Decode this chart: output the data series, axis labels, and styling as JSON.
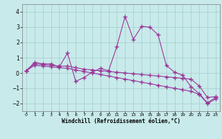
{
  "x": [
    0,
    1,
    2,
    3,
    4,
    5,
    6,
    7,
    8,
    9,
    10,
    11,
    12,
    13,
    14,
    15,
    16,
    17,
    18,
    19,
    20,
    21,
    22,
    23
  ],
  "y_main": [
    0.15,
    0.7,
    0.6,
    0.6,
    0.4,
    1.3,
    -0.55,
    -0.3,
    0.05,
    0.3,
    0.15,
    1.75,
    3.7,
    2.2,
    3.05,
    3.0,
    2.5,
    0.5,
    0.05,
    -0.15,
    -0.9,
    -1.35,
    -1.95,
    -1.6
  ],
  "y_upper": [
    0.15,
    0.6,
    0.55,
    0.5,
    0.45,
    0.45,
    0.35,
    0.25,
    0.2,
    0.15,
    0.1,
    0.05,
    0.0,
    -0.05,
    -0.1,
    -0.15,
    -0.2,
    -0.25,
    -0.3,
    -0.35,
    -0.4,
    -0.85,
    -1.6,
    -1.55
  ],
  "y_lower": [
    0.15,
    0.5,
    0.45,
    0.4,
    0.35,
    0.3,
    0.2,
    0.1,
    0.0,
    -0.1,
    -0.2,
    -0.3,
    -0.4,
    -0.5,
    -0.6,
    -0.7,
    -0.8,
    -0.9,
    -1.0,
    -1.1,
    -1.2,
    -1.4,
    -2.0,
    -1.7
  ],
  "xlabel": "Windchill (Refroidissement éolien,°C)",
  "ylim": [
    -2.5,
    4.5
  ],
  "xlim": [
    -0.5,
    23.5
  ],
  "yticks": [
    -2,
    -1,
    0,
    1,
    2,
    3,
    4
  ],
  "xticks": [
    0,
    1,
    2,
    3,
    4,
    5,
    6,
    7,
    8,
    9,
    10,
    11,
    12,
    13,
    14,
    15,
    16,
    17,
    18,
    19,
    20,
    21,
    22,
    23
  ],
  "line_color": "#993399",
  "bg_color": "#c8eaea",
  "grid_color": "#aad0d0",
  "marker": "+",
  "markersize": 4,
  "linewidth": 0.8
}
